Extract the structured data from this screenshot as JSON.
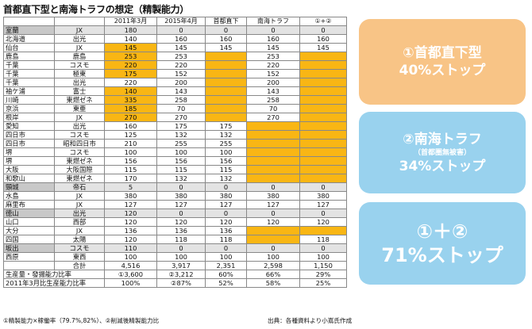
{
  "title": "首都直下型と南海トラフの想定（精製能力）",
  "headers": [
    "",
    "",
    "2011年3月",
    "2015年4月",
    "首都直下",
    "南海トラフ",
    "①+②"
  ],
  "rows": [
    {
      "loc": "室蘭",
      "co": "JX",
      "v": [
        "180",
        "0",
        "0",
        "0",
        "0"
      ],
      "gray": true,
      "orange": []
    },
    {
      "loc": "北海道",
      "co": "出光",
      "v": [
        "140",
        "160",
        "160",
        "160",
        "160"
      ],
      "gray": false,
      "orange": []
    },
    {
      "loc": "仙台",
      "co": "JX",
      "v": [
        "145",
        "145",
        "145",
        "145",
        "145"
      ],
      "gray": false,
      "orange": [
        0
      ]
    },
    {
      "loc": "鹿島",
      "co": "鹿島",
      "v": [
        "253",
        "253",
        "",
        "253",
        ""
      ],
      "gray": false,
      "orange": [
        0,
        2,
        4
      ]
    },
    {
      "loc": "千葉",
      "co": "コスモ",
      "v": [
        "220",
        "220",
        "",
        "220",
        ""
      ],
      "gray": false,
      "orange": [
        0,
        2,
        4
      ]
    },
    {
      "loc": "千葉",
      "co": "極東",
      "v": [
        "175",
        "152",
        "",
        "152",
        ""
      ],
      "gray": false,
      "orange": [
        0,
        2,
        4
      ]
    },
    {
      "loc": "千葉",
      "co": "出光",
      "v": [
        "220",
        "200",
        "",
        "200",
        ""
      ],
      "gray": false,
      "orange": [
        2,
        4
      ]
    },
    {
      "loc": "袖ケ浦",
      "co": "富士",
      "v": [
        "140",
        "143",
        "",
        "143",
        ""
      ],
      "gray": false,
      "orange": [
        0,
        2,
        4
      ]
    },
    {
      "loc": "川崎",
      "co": "東燃ゼネ",
      "v": [
        "335",
        "258",
        "",
        "258",
        ""
      ],
      "gray": false,
      "orange": [
        0,
        2,
        4
      ]
    },
    {
      "loc": "京浜",
      "co": "東亜",
      "v": [
        "185",
        "70",
        "",
        "70",
        ""
      ],
      "gray": false,
      "orange": [
        0,
        2,
        4
      ]
    },
    {
      "loc": "根岸",
      "co": "JX",
      "v": [
        "270",
        "270",
        "",
        "270",
        ""
      ],
      "gray": false,
      "orange": [
        0,
        2,
        4
      ]
    },
    {
      "loc": "愛知",
      "co": "出光",
      "v": [
        "160",
        "175",
        "175",
        "",
        ""
      ],
      "gray": false,
      "orange": [
        3,
        4
      ]
    },
    {
      "loc": "四日市",
      "co": "コスモ",
      "v": [
        "125",
        "132",
        "132",
        "",
        ""
      ],
      "gray": false,
      "orange": [
        3,
        4
      ]
    },
    {
      "loc": "四日市",
      "co": "昭和四日市",
      "v": [
        "210",
        "255",
        "255",
        "",
        ""
      ],
      "gray": false,
      "orange": [
        3,
        4
      ]
    },
    {
      "loc": "堺",
      "co": "コスモ",
      "v": [
        "100",
        "100",
        "100",
        "",
        ""
      ],
      "gray": false,
      "orange": [
        3,
        4
      ]
    },
    {
      "loc": "堺",
      "co": "東燃ゼネ",
      "v": [
        "156",
        "156",
        "156",
        "",
        ""
      ],
      "gray": false,
      "orange": [
        3,
        4
      ]
    },
    {
      "loc": "大阪",
      "co": "大阪国際",
      "v": [
        "115",
        "115",
        "115",
        "",
        ""
      ],
      "gray": false,
      "orange": [
        3,
        4
      ]
    },
    {
      "loc": "和歌山",
      "co": "東燃ゼネ",
      "v": [
        "170",
        "132",
        "132",
        "",
        ""
      ],
      "gray": false,
      "orange": [
        3,
        4
      ]
    },
    {
      "loc": "頸城",
      "co": "帝石",
      "v": [
        "5",
        "0",
        "0",
        "0",
        "0"
      ],
      "gray": true,
      "orange": []
    },
    {
      "loc": "水島",
      "co": "JX",
      "v": [
        "380",
        "380",
        "380",
        "380",
        "380"
      ],
      "gray": false,
      "orange": []
    },
    {
      "loc": "麻里布",
      "co": "JX",
      "v": [
        "127",
        "127",
        "127",
        "127",
        "127"
      ],
      "gray": false,
      "orange": []
    },
    {
      "loc": "徳山",
      "co": "出光",
      "v": [
        "120",
        "0",
        "0",
        "0",
        "0"
      ],
      "gray": true,
      "orange": []
    },
    {
      "loc": "山口",
      "co": "西部",
      "v": [
        "120",
        "120",
        "120",
        "120",
        "120"
      ],
      "gray": false,
      "orange": []
    },
    {
      "loc": "大分",
      "co": "JX",
      "v": [
        "136",
        "136",
        "136",
        "",
        ""
      ],
      "gray": false,
      "orange": [
        3,
        4
      ]
    },
    {
      "loc": "四国",
      "co": "太陽",
      "v": [
        "120",
        "118",
        "118",
        "",
        "118"
      ],
      "gray": false,
      "orange": [
        3
      ]
    },
    {
      "loc": "坂出",
      "co": "コスモ",
      "v": [
        "110",
        "0",
        "0",
        "0",
        "0"
      ],
      "gray": true,
      "orange": []
    },
    {
      "loc": "西原",
      "co": "東西",
      "v": [
        "100",
        "100",
        "100",
        "100",
        "100"
      ],
      "gray": false,
      "orange": []
    }
  ],
  "total": {
    "label": "合計",
    "v": [
      "4,516",
      "3,917",
      "2,351",
      "2,598",
      "1,150"
    ]
  },
  "ratio1": {
    "label": "生産量・發揚能力比率",
    "v": [
      "①3,600",
      "②3,212",
      "60%",
      "66%",
      "29%"
    ]
  },
  "ratio2": {
    "label": "2011年3月比生産能力比率",
    "v": [
      "100%",
      "②87%",
      "52%",
      "58%",
      "25%"
    ]
  },
  "footnote_left": "①精製能力×稼働率（79.7%,82%）、②削減後精製能力比",
  "footnote_right": "出典：各種資料より小嶌氏作成",
  "cards": [
    {
      "line1": "①首都直下型",
      "line2": "40%ストップ"
    },
    {
      "line1": "②南海トラフ",
      "sub": "（首都圏無被害）",
      "line2": "34%ストップ"
    },
    {
      "line1": "①＋②",
      "line2": "71%ストップ"
    }
  ],
  "colors": {
    "orange": "#f9b614",
    "card_orange": "#f8c486",
    "card_blue": "#99d2ee",
    "gray": "#c8c8c8"
  }
}
